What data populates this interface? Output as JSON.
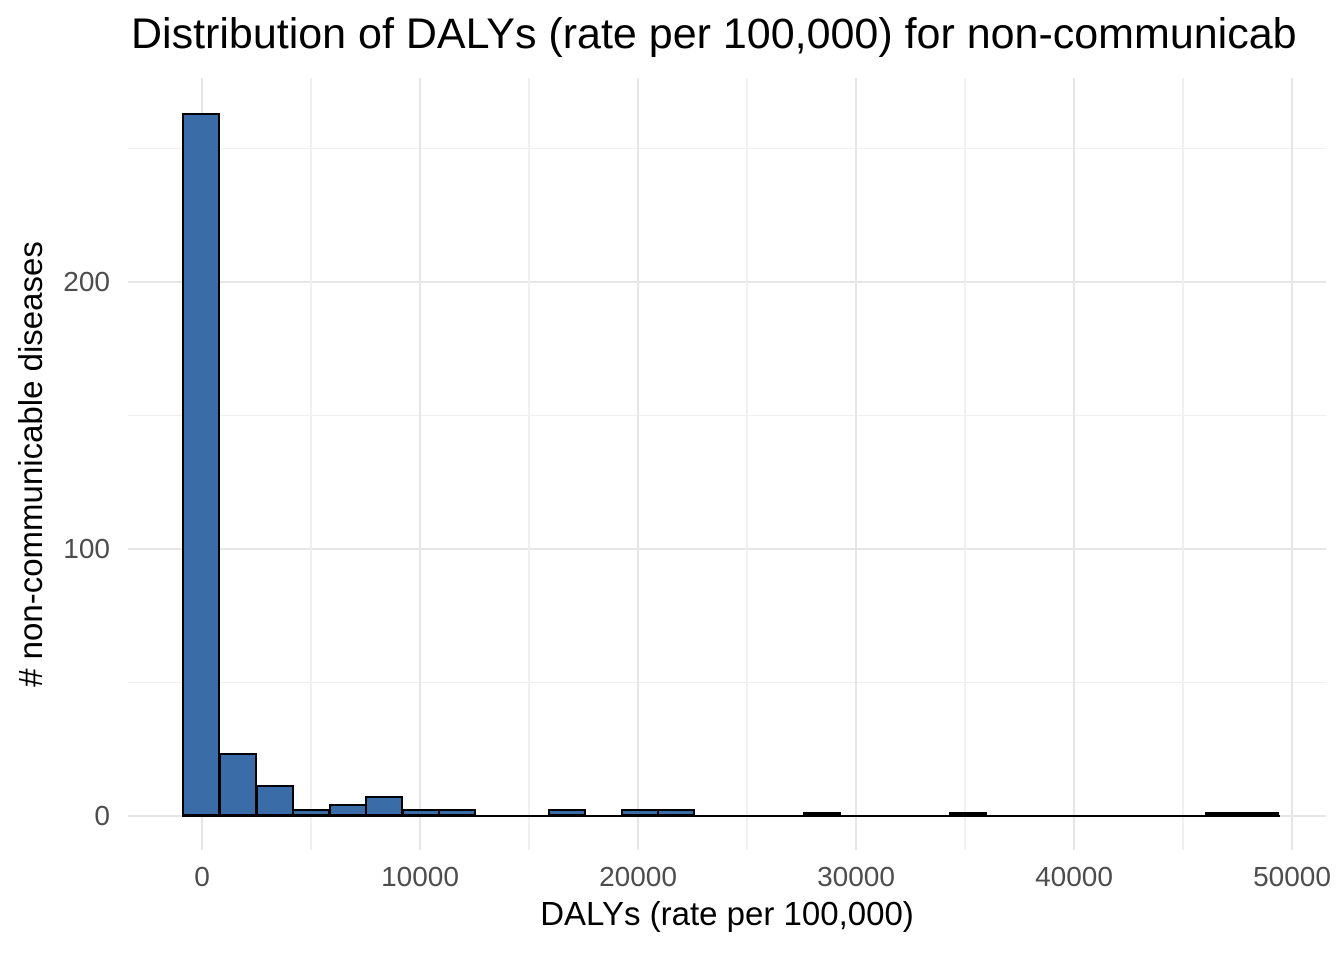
{
  "title": "Distribution of DALYs (rate per 100,000) for non-communicab",
  "x_axis": {
    "label": "DALYs (rate per 100,000)",
    "tick_labels": [
      "0",
      "10000",
      "20000",
      "30000",
      "40000",
      "50000"
    ]
  },
  "y_axis": {
    "label": "# non-communicable diseases",
    "tick_labels": [
      "0",
      "100",
      "200"
    ]
  },
  "colors": {
    "background": "#ffffff",
    "bar_fill": "#3a6da8",
    "bar_border": "#000000",
    "grid_major": "#e6e6e6",
    "grid_minor": "#f0f0f0",
    "tick_text": "#4d4d4d",
    "title_text": "#000000"
  },
  "chart_data": {
    "type": "bar",
    "subtype": "histogram",
    "title": "Distribution of DALYs (rate per 100,000) for non-communicab",
    "xlabel": "DALYs (rate per 100,000)",
    "ylabel": "# non-communicable diseases",
    "bin_width": 1675,
    "bin_centers": [
      0,
      1675,
      3350,
      5025,
      6700,
      8375,
      10050,
      11725,
      13400,
      15075,
      16750,
      18425,
      20100,
      21775,
      23450,
      25125,
      26800,
      28475,
      30150,
      31825,
      33500,
      35175,
      36850,
      38525,
      40200,
      41875,
      43550,
      45225,
      46900,
      48575
    ],
    "counts": [
      263,
      23,
      11,
      2,
      4,
      7,
      2,
      2,
      0,
      0,
      2,
      0,
      2,
      2,
      0,
      0,
      0,
      1,
      0,
      0,
      0,
      1,
      0,
      0,
      0,
      0,
      0,
      0,
      1,
      1
    ],
    "x_major_ticks": [
      0,
      10000,
      20000,
      30000,
      40000,
      50000
    ],
    "x_minor_gridlines": [
      5000,
      15000,
      25000,
      35000,
      45000
    ],
    "y_major_ticks": [
      0,
      100,
      200
    ],
    "y_minor_gridlines": [
      50,
      150,
      250
    ],
    "xlim": [
      -3400,
      51600
    ],
    "ylim": [
      0,
      276
    ],
    "grid": true,
    "legend": false
  }
}
